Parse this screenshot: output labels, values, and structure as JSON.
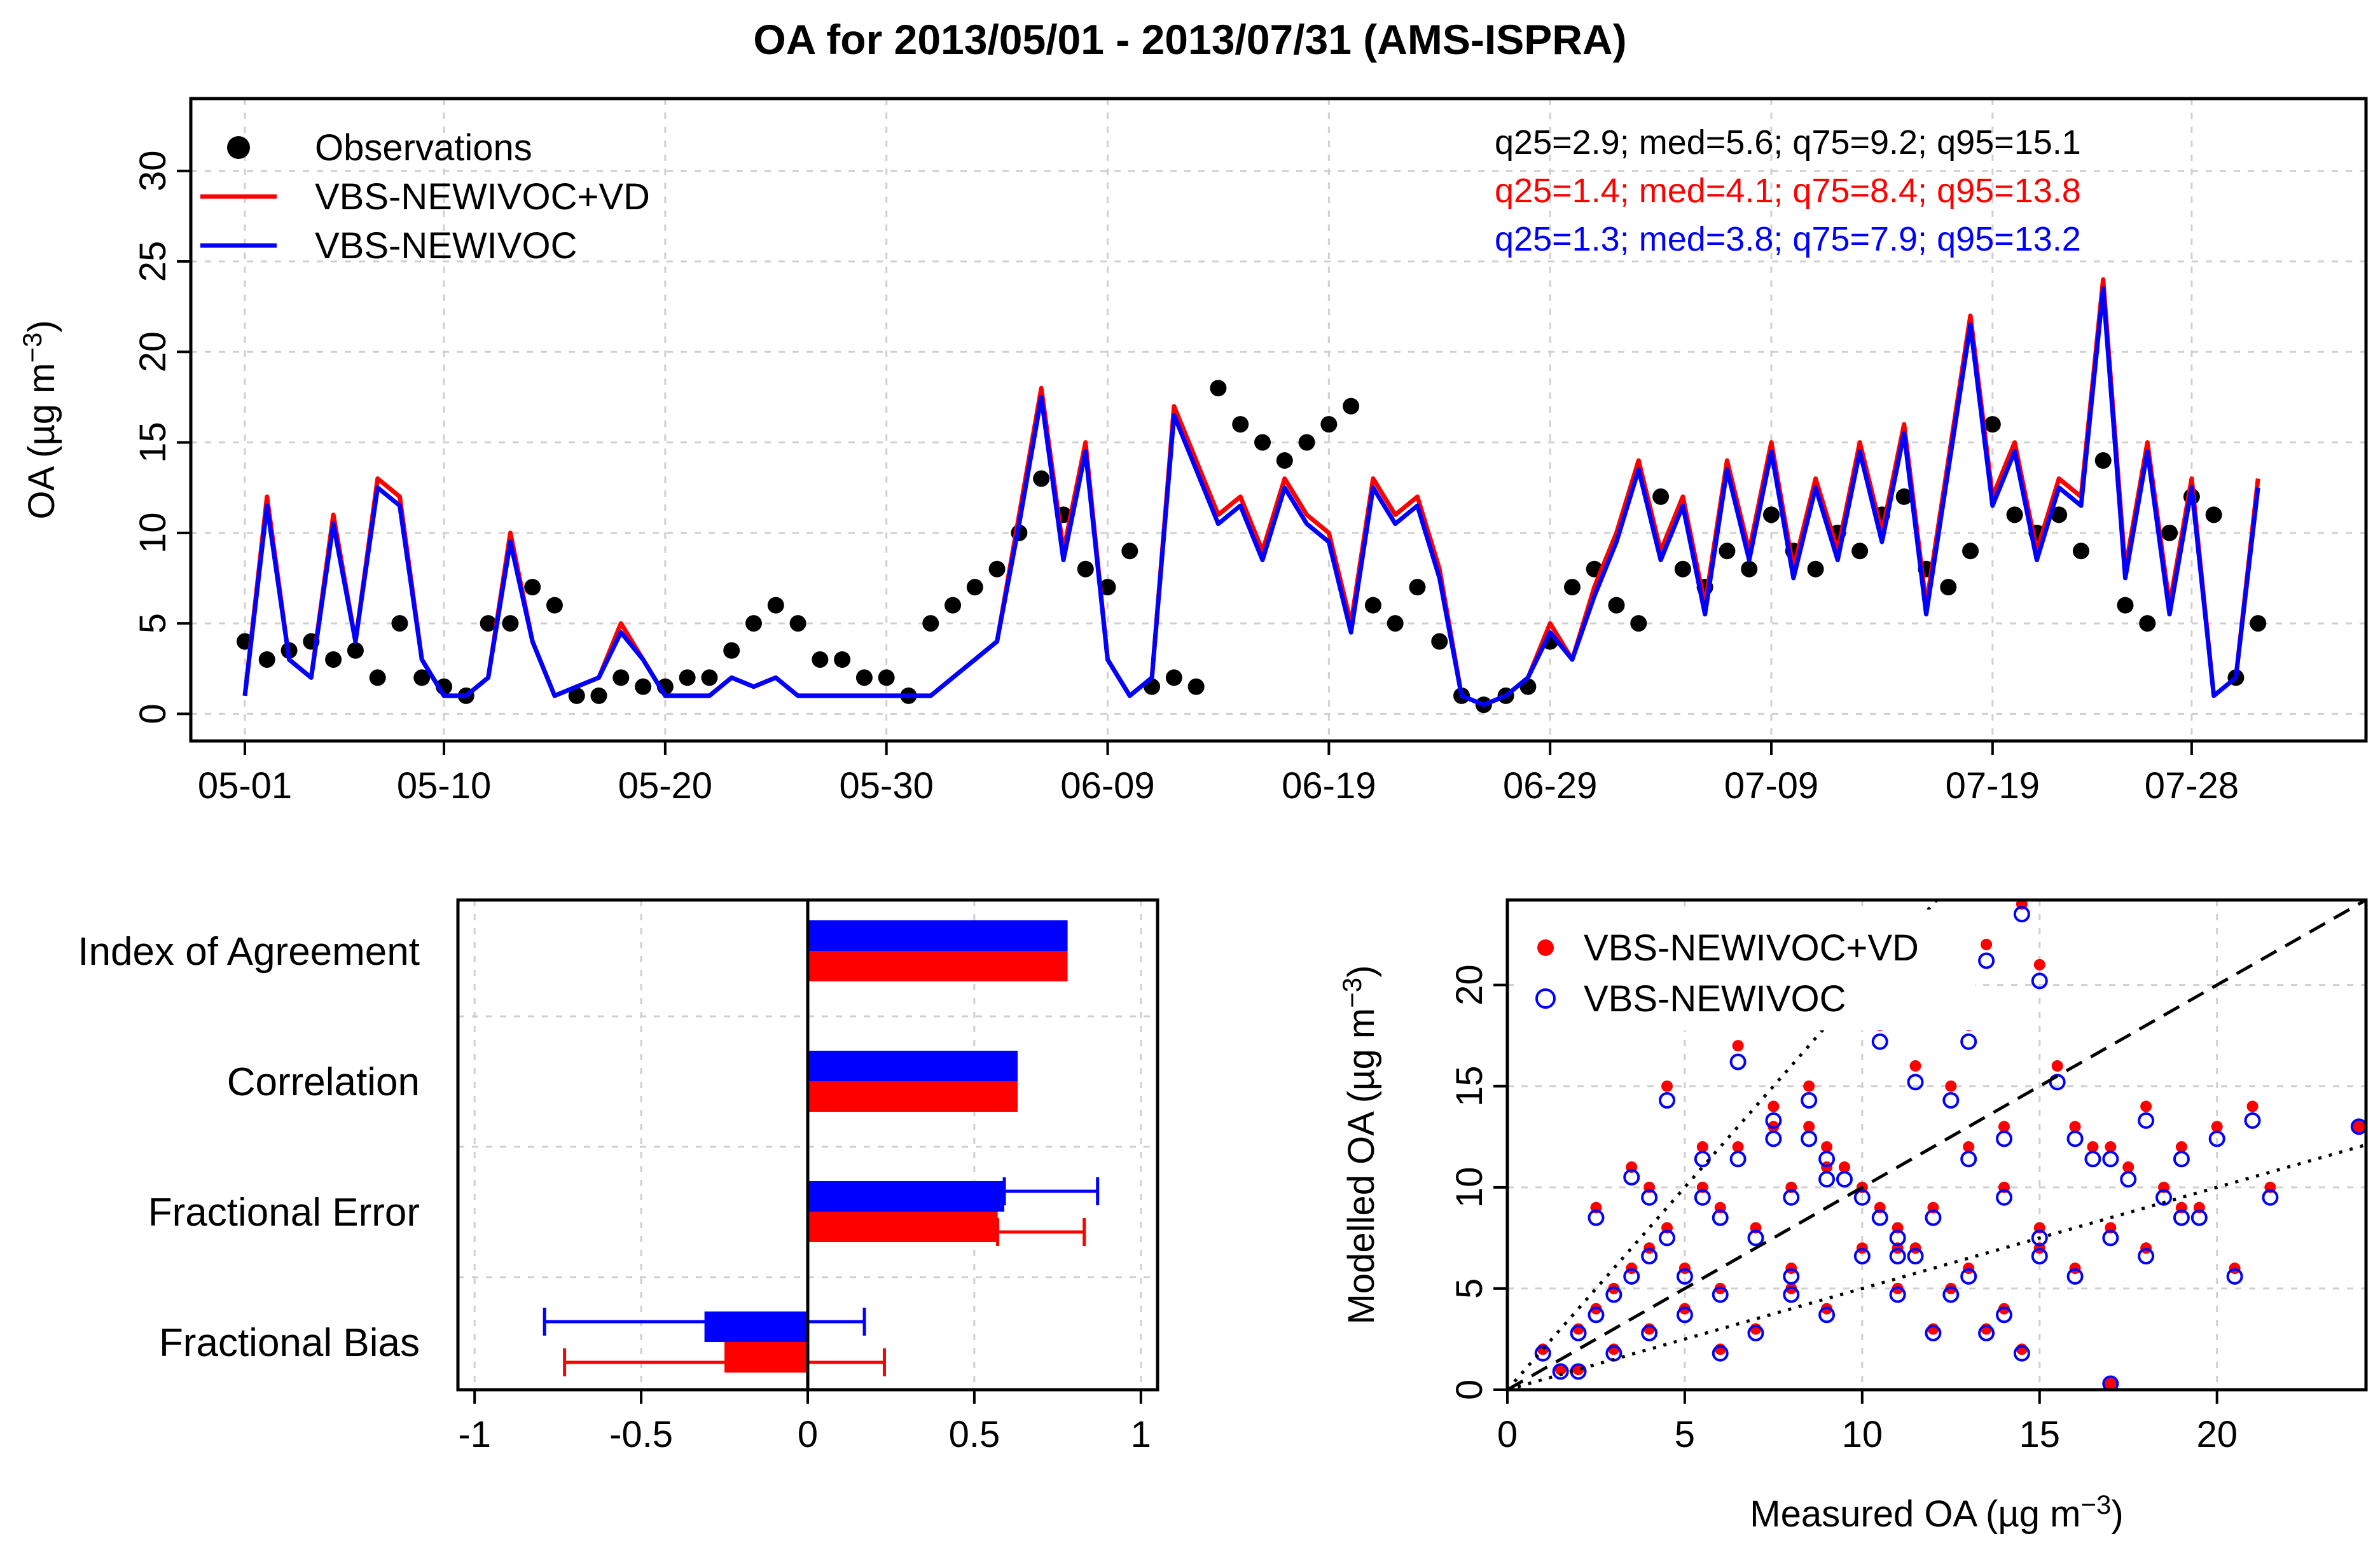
{
  "chart_data": [
    {
      "type": "line",
      "title": "OA for 2013/05/01 - 2013/07/31 (AMS-ISPRA)",
      "ylabel": "OA (µg m⁻³)",
      "ylabel_main": "OA (µg m",
      "ylabel_sup": "−3",
      "ylabel_close": ")",
      "ylim": [
        -1.5,
        34
      ],
      "x_day_range": [
        0,
        92
      ],
      "x_ticks": [
        {
          "day": 0,
          "label": "05-01"
        },
        {
          "day": 9,
          "label": "05-10"
        },
        {
          "day": 19,
          "label": "05-20"
        },
        {
          "day": 29,
          "label": "05-30"
        },
        {
          "day": 39,
          "label": "06-09"
        },
        {
          "day": 49,
          "label": "06-19"
        },
        {
          "day": 59,
          "label": "06-29"
        },
        {
          "day": 69,
          "label": "07-09"
        },
        {
          "day": 79,
          "label": "07-19"
        },
        {
          "day": 88,
          "label": "07-28"
        }
      ],
      "y_ticks": [
        0,
        5,
        10,
        15,
        20,
        25,
        30
      ],
      "legend": [
        {
          "label": "Observations",
          "color": "#000000",
          "kind": "point"
        },
        {
          "label": "VBS-NEWIVOC+VD",
          "color": "#ff0000",
          "kind": "line"
        },
        {
          "label": "VBS-NEWIVOC",
          "color": "#0000ff",
          "kind": "line"
        }
      ],
      "stats": [
        {
          "text": "q25=2.9; med=5.6; q75=9.2; q95=15.1",
          "color": "#000000"
        },
        {
          "text": "q25=1.4; med=4.1; q75=8.4; q95=13.8",
          "color": "#ff0000"
        },
        {
          "text": "q25=1.3; med=3.8; q75=7.9; q95=13.2",
          "color": "#0000ff"
        }
      ],
      "series": [
        {
          "name": "Observations",
          "color": "#000000",
          "x": [
            0,
            1,
            2,
            3,
            4,
            5,
            6,
            7,
            8,
            9,
            10,
            11,
            12,
            13,
            14,
            15,
            16,
            17,
            18,
            19,
            20,
            21,
            22,
            23,
            24,
            25,
            26,
            27,
            28,
            29,
            30,
            31,
            32,
            33,
            34,
            35,
            36,
            37,
            38,
            39,
            40,
            41,
            42,
            43,
            44,
            45,
            46,
            47,
            48,
            49,
            50,
            51,
            52,
            53,
            54,
            55,
            56,
            57,
            58,
            59,
            60,
            61,
            62,
            63,
            64,
            65,
            66,
            67,
            68,
            69,
            70,
            71,
            72,
            73,
            74,
            75,
            76,
            77,
            78,
            79,
            80,
            81,
            82,
            83,
            84,
            85,
            86,
            87,
            88,
            89,
            90,
            91
          ],
          "y": [
            4,
            3,
            3.5,
            4,
            3,
            3.5,
            2,
            5,
            2,
            1.5,
            1,
            5,
            5,
            7,
            6,
            1,
            1,
            2,
            1.5,
            1.5,
            2,
            2,
            3.5,
            5,
            6,
            5,
            3,
            3,
            2,
            2,
            1,
            5,
            6,
            7,
            8,
            10,
            13,
            11,
            8,
            7,
            9,
            1.5,
            2,
            1.5,
            18,
            16,
            15,
            14,
            15,
            16,
            17,
            6,
            5,
            7,
            4,
            1,
            0.5,
            1,
            1.5,
            4,
            7,
            8,
            6,
            5,
            12,
            8,
            7,
            9,
            8,
            11,
            9,
            8,
            10,
            9,
            11,
            12,
            8,
            7,
            9,
            16,
            11,
            10,
            11,
            9,
            14,
            6,
            5,
            10,
            12,
            11,
            2,
            5
          ]
        },
        {
          "name": "VBS-NEWIVOC+VD",
          "color": "#ff0000",
          "x": [
            0,
            1,
            2,
            3,
            4,
            5,
            6,
            7,
            8,
            9,
            10,
            11,
            12,
            13,
            14,
            15,
            16,
            17,
            18,
            19,
            20,
            21,
            22,
            23,
            24,
            25,
            26,
            27,
            28,
            29,
            30,
            31,
            32,
            33,
            34,
            35,
            36,
            37,
            38,
            39,
            40,
            41,
            42,
            43,
            44,
            45,
            46,
            47,
            48,
            49,
            50,
            51,
            52,
            53,
            54,
            55,
            56,
            57,
            58,
            59,
            60,
            61,
            62,
            63,
            64,
            65,
            66,
            67,
            68,
            69,
            70,
            71,
            72,
            73,
            74,
            75,
            76,
            77,
            78,
            79,
            80,
            81,
            82,
            83,
            84,
            85,
            86,
            87,
            88,
            89,
            90,
            91
          ],
          "y": [
            1,
            12,
            3,
            2,
            11,
            4,
            13,
            12,
            3,
            1,
            1,
            2,
            10,
            4,
            1,
            1.5,
            2,
            5,
            3,
            1,
            1,
            1,
            2,
            1.5,
            2,
            1,
            1,
            1,
            1,
            1,
            1,
            1,
            2,
            3,
            4,
            11,
            18,
            9,
            15,
            3,
            1,
            2,
            17,
            14,
            11,
            12,
            9,
            13,
            11,
            10,
            5,
            13,
            11,
            12,
            8,
            1,
            0.5,
            1,
            2,
            5,
            3,
            7,
            10,
            14,
            9,
            12,
            6,
            14,
            9,
            15,
            8,
            13,
            9,
            15,
            10,
            16,
            6,
            14,
            22,
            12,
            15,
            9,
            13,
            12,
            24,
            8,
            15,
            6,
            13,
            1,
            2,
            13
          ]
        },
        {
          "name": "VBS-NEWIVOC",
          "color": "#0000ff",
          "x": [
            0,
            1,
            2,
            3,
            4,
            5,
            6,
            7,
            8,
            9,
            10,
            11,
            12,
            13,
            14,
            15,
            16,
            17,
            18,
            19,
            20,
            21,
            22,
            23,
            24,
            25,
            26,
            27,
            28,
            29,
            30,
            31,
            32,
            33,
            34,
            35,
            36,
            37,
            38,
            39,
            40,
            41,
            42,
            43,
            44,
            45,
            46,
            47,
            48,
            49,
            50,
            51,
            52,
            53,
            54,
            55,
            56,
            57,
            58,
            59,
            60,
            61,
            62,
            63,
            64,
            65,
            66,
            67,
            68,
            69,
            70,
            71,
            72,
            73,
            74,
            75,
            76,
            77,
            78,
            79,
            80,
            81,
            82,
            83,
            84,
            85,
            86,
            87,
            88,
            89,
            90,
            91
          ],
          "y": [
            1,
            11.5,
            3,
            2,
            10.5,
            4,
            12.5,
            11.5,
            3,
            1,
            1,
            2,
            9.5,
            4,
            1,
            1.5,
            2,
            4.5,
            3,
            1,
            1,
            1,
            2,
            1.5,
            2,
            1,
            1,
            1,
            1,
            1,
            1,
            1,
            2,
            3,
            4,
            10.5,
            17.5,
            8.5,
            14.5,
            3,
            1,
            2,
            16.5,
            13.5,
            10.5,
            11.5,
            8.5,
            12.5,
            10.5,
            9.5,
            4.5,
            12.5,
            10.5,
            11.5,
            7.5,
            1,
            0.5,
            1,
            2,
            4.5,
            3,
            6.5,
            9.5,
            13.5,
            8.5,
            11.5,
            5.5,
            13.5,
            8.5,
            14.5,
            7.5,
            12.5,
            8.5,
            14.5,
            9.5,
            15.5,
            5.5,
            13.5,
            21.5,
            11.5,
            14.5,
            8.5,
            12.5,
            11.5,
            23.5,
            7.5,
            14.5,
            5.5,
            12.5,
            1,
            2,
            12.5
          ]
        }
      ]
    },
    {
      "type": "bar",
      "orientation": "horizontal",
      "categories": [
        "Index of Agreement",
        "Correlation",
        "Fractional Error",
        "Fractional Bias"
      ],
      "xlim": [
        -1.05,
        1.05
      ],
      "x_ticks": [
        {
          "value": -1,
          "label": "-1"
        },
        {
          "value": -0.5,
          "label": "-0.5"
        },
        {
          "value": 0,
          "label": "0"
        },
        {
          "value": 0.5,
          "label": "0.5"
        },
        {
          "value": 1,
          "label": "1"
        }
      ],
      "series": [
        {
          "name": "VBS-NEWIVOC",
          "color": "#0000ff",
          "values": [
            0.78,
            0.63,
            0.59,
            -0.31
          ],
          "err_low": [
            null,
            null,
            0.59,
            -0.79
          ],
          "err_high": [
            null,
            null,
            0.87,
            0.17
          ]
        },
        {
          "name": "VBS-NEWIVOC+VD",
          "color": "#ff0000",
          "values": [
            0.78,
            0.63,
            0.57,
            -0.25
          ],
          "err_low": [
            null,
            null,
            0.57,
            -0.73
          ],
          "err_high": [
            null,
            null,
            0.83,
            0.23
          ]
        }
      ]
    },
    {
      "type": "scatter",
      "xlabel_main": "Measured OA (µg m",
      "xlabel_sup": "−3",
      "xlabel_close": ")",
      "ylabel_main": "Modelled OA (µg m",
      "ylabel_sup": "−3",
      "ylabel_close": ")",
      "xlim": [
        0,
        24.2
      ],
      "ylim": [
        0,
        24.2
      ],
      "x_ticks": [
        0,
        5,
        10,
        15,
        20
      ],
      "y_ticks": [
        0,
        5,
        10,
        15,
        20
      ],
      "reference_lines": [
        {
          "slope": 1,
          "style": "dashed"
        },
        {
          "slope": 2,
          "style": "dotted"
        },
        {
          "slope": 0.5,
          "style": "dotted"
        }
      ],
      "legend": [
        {
          "label": "VBS-NEWIVOC+VD",
          "color": "#ff0000",
          "marker": "filled-circle"
        },
        {
          "label": "VBS-NEWIVOC",
          "color": "#0000ff",
          "marker": "open-circle"
        }
      ],
      "series": [
        {
          "name": "VBS-NEWIVOC+VD",
          "color": "#ff0000",
          "x": [
            1,
            2,
            2.5,
            3,
            3.5,
            4,
            4.5,
            5,
            5.5,
            6,
            6.5,
            7,
            7.5,
            8,
            8.5,
            9,
            9.5,
            10,
            10.5,
            11,
            11.5,
            12,
            12.5,
            13,
            13.5,
            14,
            14.5,
            15,
            15.5,
            16,
            16.5,
            17,
            17.5,
            18,
            18.5,
            19,
            19.5,
            20,
            20.5,
            21,
            21.5,
            24,
            2,
            3,
            4,
            5,
            6,
            7,
            8,
            9,
            10,
            11,
            12,
            13,
            14,
            15,
            16,
            17,
            18,
            19,
            1.5,
            2.5,
            3.5,
            4.5,
            5.5,
            6.5,
            7.5,
            8.5,
            9.5,
            10.5,
            11.5,
            12.5,
            13.5,
            14.5,
            4,
            6,
            8,
            9,
            11,
            13,
            14,
            15,
            17
          ],
          "y": [
            2,
            3,
            9,
            5,
            11,
            7,
            15,
            6,
            12,
            9,
            17,
            8,
            13,
            10,
            15,
            11,
            20,
            10,
            18,
            8,
            16,
            9,
            15,
            12,
            22,
            10,
            24,
            7,
            16,
            13,
            12,
            8,
            11,
            14,
            10,
            12,
            9,
            13,
            6,
            14,
            10,
            13,
            1,
            2,
            3,
            4,
            5,
            3,
            6,
            4,
            7,
            5,
            3,
            6,
            4,
            8,
            6,
            12,
            7,
            9,
            1,
            4,
            6,
            8,
            10,
            12,
            14,
            13,
            11,
            9,
            7,
            5,
            3,
            2,
            10,
            2,
            5,
            12,
            7,
            18,
            13,
            21,
            0.3
          ]
        },
        {
          "name": "VBS-NEWIVOC",
          "color": "#0000ff",
          "x": [
            1,
            2,
            2.5,
            3,
            3.5,
            4,
            4.5,
            5,
            5.5,
            6,
            6.5,
            7,
            7.5,
            8,
            8.5,
            9,
            9.5,
            10,
            10.5,
            11,
            11.5,
            12,
            12.5,
            13,
            13.5,
            14,
            14.5,
            15,
            15.5,
            16,
            16.5,
            17,
            17.5,
            18,
            18.5,
            19,
            19.5,
            20,
            20.5,
            21,
            21.5,
            24,
            2,
            3,
            4,
            5,
            6,
            7,
            8,
            9,
            10,
            11,
            12,
            13,
            14,
            15,
            16,
            17,
            18,
            19,
            1.5,
            2.5,
            3.5,
            4.5,
            5.5,
            6.5,
            7.5,
            8.5,
            9.5,
            10.5,
            11.5,
            12.5,
            13.5,
            14.5,
            4,
            6,
            8,
            9,
            11,
            13,
            14,
            15,
            17
          ],
          "y": [
            1.8,
            2.8,
            8.5,
            4.7,
            10.5,
            6.6,
            14.3,
            5.6,
            11.4,
            8.5,
            16.2,
            7.5,
            12.4,
            9.5,
            14.3,
            10.4,
            19.2,
            9.5,
            17.2,
            7.5,
            15.2,
            8.5,
            14.3,
            11.4,
            21.2,
            9.5,
            23.5,
            6.6,
            15.2,
            12.4,
            11.4,
            7.5,
            10.4,
            13.3,
            9.5,
            11.4,
            8.5,
            12.4,
            5.6,
            13.3,
            9.5,
            13,
            0.9,
            1.8,
            2.8,
            3.7,
            4.7,
            2.8,
            5.6,
            3.7,
            6.6,
            4.7,
            2.8,
            5.6,
            3.7,
            7.5,
            5.6,
            11.4,
            6.6,
            8.5,
            0.9,
            3.7,
            5.6,
            7.5,
            9.5,
            11.4,
            13.3,
            12.4,
            10.4,
            8.5,
            6.6,
            4.7,
            2.8,
            1.8,
            9.5,
            1.8,
            4.7,
            11.4,
            6.6,
            17.2,
            12.4,
            20.2,
            0.3
          ]
        }
      ]
    }
  ]
}
